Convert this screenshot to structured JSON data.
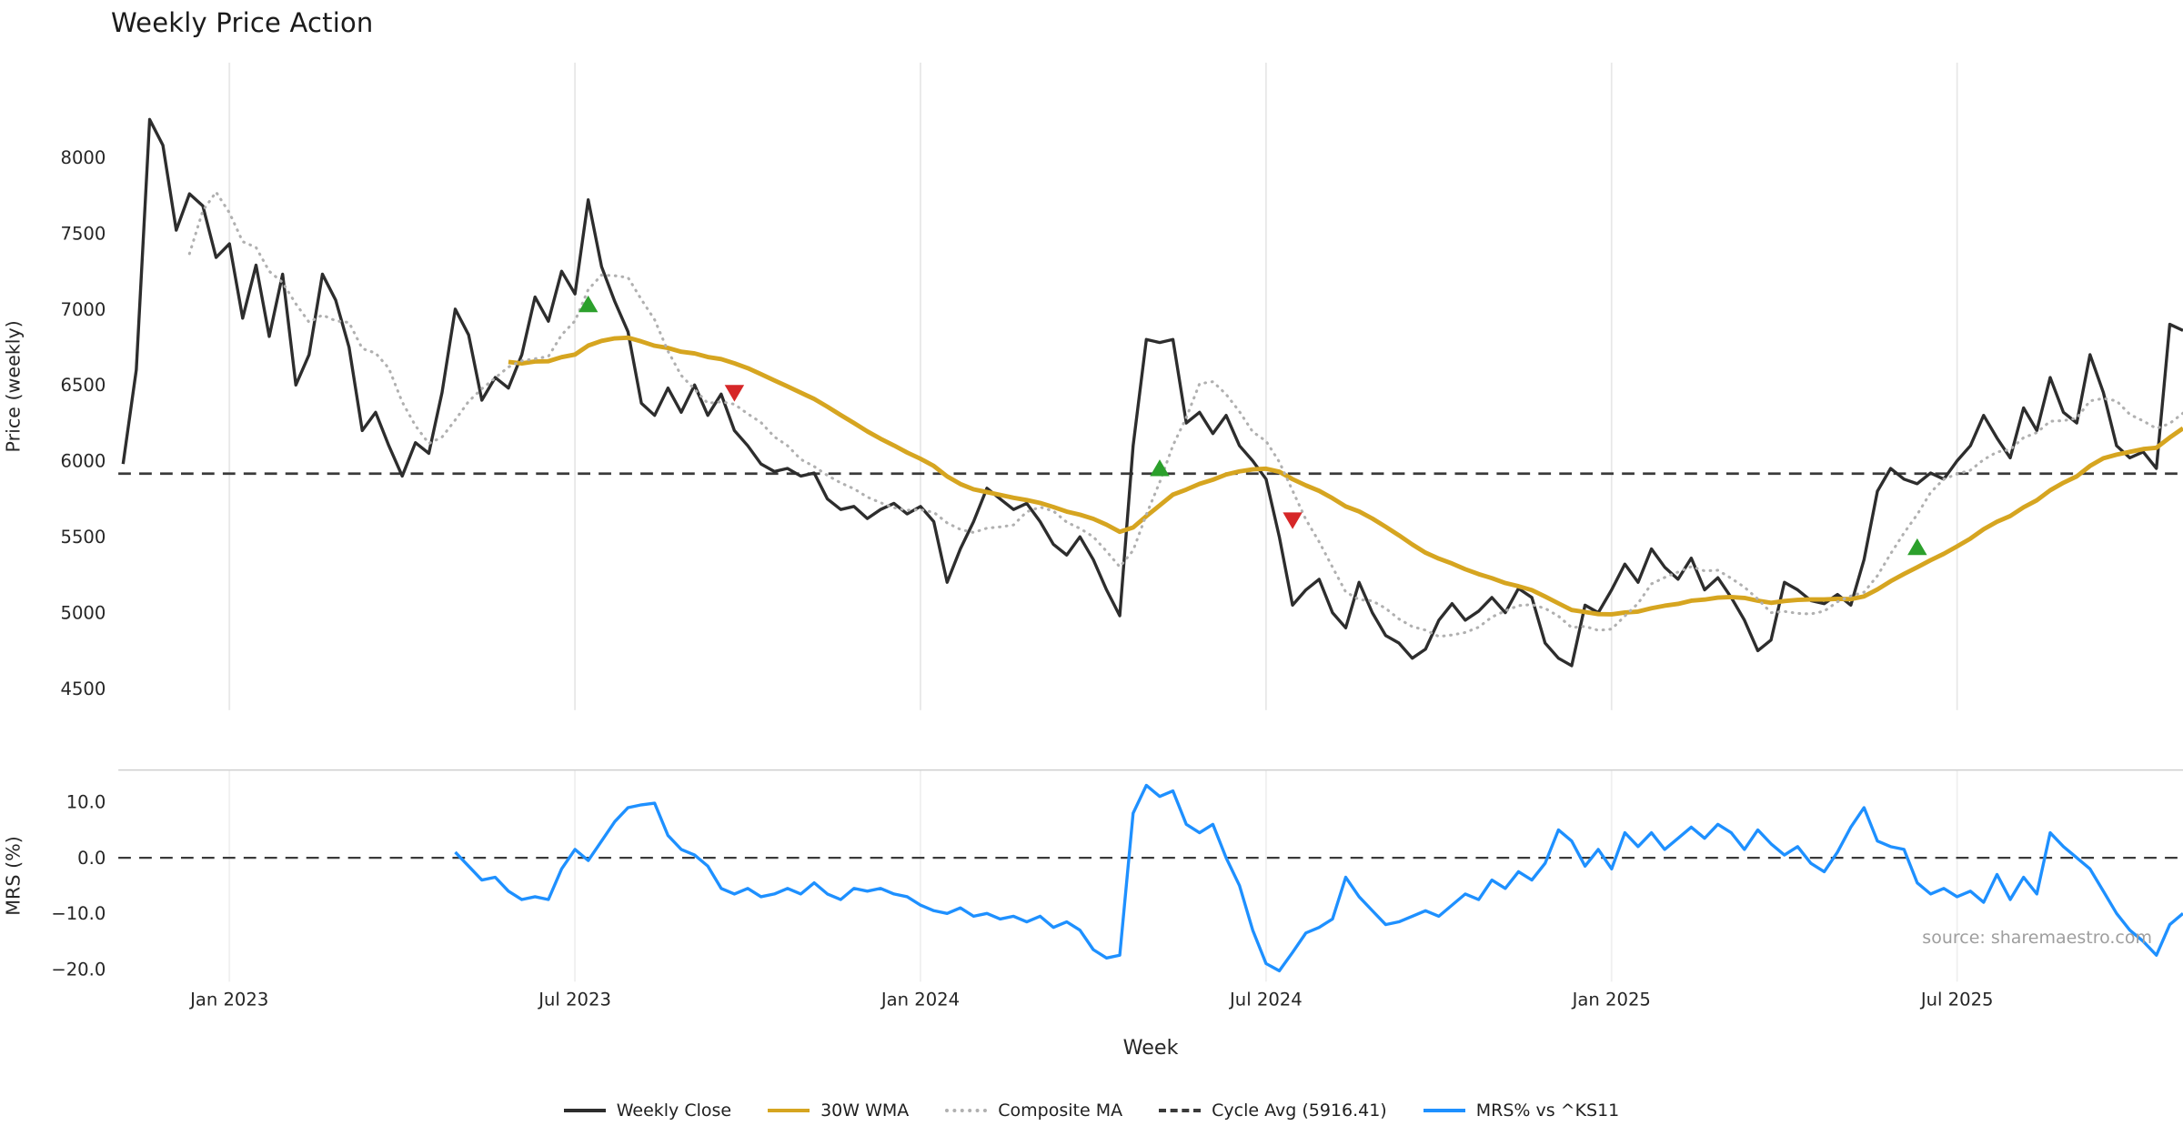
{
  "title": "Weekly Price Action",
  "source": "source: sharemaestro.com",
  "xlabel": "Week",
  "legend": [
    {
      "label": "Weekly Close",
      "color": "#2d2d2d",
      "style": "solid"
    },
    {
      "label": "30W WMA",
      "color": "#d6a520",
      "style": "solid"
    },
    {
      "label": "Composite MA",
      "color": "#b0b0b0",
      "style": "dotted"
    },
    {
      "label": "Cycle Avg (5916.41)",
      "color": "#3a3a3a",
      "style": "dashed"
    },
    {
      "label": "MRS% vs ^KS11",
      "color": "#1e90ff",
      "style": "solid"
    }
  ],
  "chart_data": {
    "type": "line",
    "title": "Weekly Price Action",
    "xlabel": "Week",
    "x_note": "x is weekly; tick marks every 26 weeks",
    "x_ticks": [
      {
        "week": 8,
        "label": "Jan 2023"
      },
      {
        "week": 34,
        "label": "Jul 2023"
      },
      {
        "week": 60,
        "label": "Jan 2024"
      },
      {
        "week": 86,
        "label": "Jul 2024"
      },
      {
        "week": 112,
        "label": "Jan 2025"
      },
      {
        "week": 138,
        "label": "Jul 2025"
      }
    ],
    "panels": [
      {
        "name": "price",
        "ylabel": "Price (weekly)",
        "ylim": [
          4363,
          8623
        ],
        "yticks": [
          4500,
          5000,
          5500,
          6000,
          6500,
          7000,
          7500,
          8000
        ],
        "cycle_avg": 5916.41,
        "series": {
          "close": {
            "name": "Weekly Close",
            "color": "#2d2d2d",
            "start_week": 0,
            "values": [
              5980,
              6600,
              8250,
              8080,
              7520,
              7760,
              7680,
              7340,
              7430,
              6940,
              7290,
              6820,
              7230,
              6500,
              6700,
              7230,
              7060,
              6750,
              6200,
              6320,
              6100,
              5900,
              6120,
              6050,
              6450,
              7000,
              6830,
              6400,
              6550,
              6480,
              6700,
              7080,
              6920,
              7250,
              7100,
              7720,
              7280,
              7050,
              6850,
              6380,
              6300,
              6480,
              6320,
              6500,
              6300,
              6440,
              6200,
              6100,
              5980,
              5930,
              5950,
              5900,
              5920,
              5750,
              5680,
              5700,
              5620,
              5680,
              5720,
              5650,
              5700,
              5600,
              5200,
              5420,
              5600,
              5820,
              5750,
              5680,
              5720,
              5600,
              5450,
              5380,
              5500,
              5350,
              5150,
              4980,
              6100,
              6800,
              6780,
              6800,
              6250,
              6320,
              6180,
              6300,
              6100,
              6000,
              5880,
              5500,
              5050,
              5150,
              5220,
              5000,
              4900,
              5200,
              5000,
              4850,
              4800,
              4700,
              4760,
              4950,
              5060,
              4950,
              5010,
              5100,
              5000,
              5160,
              5100,
              4800,
              4700,
              4650,
              5050,
              5000,
              5150,
              5320,
              5200,
              5420,
              5300,
              5220,
              5360,
              5150,
              5230,
              5100,
              4950,
              4750,
              4820,
              5200,
              5150,
              5080,
              5060,
              5120,
              5050,
              5350,
              5800,
              5950,
              5880,
              5850,
              5920,
              5880,
              6000,
              6100,
              6300,
              6150,
              6020,
              6350,
              6200,
              6550,
              6320,
              6250,
              6700,
              6450,
              6100,
              6020,
              6060,
              5950,
              6900,
              6860
            ]
          },
          "wma": {
            "name": "30W WMA",
            "color": "#d6a520",
            "window": 30,
            "weighting": "linear",
            "derived_from": "close"
          },
          "composite": {
            "name": "Composite MA",
            "color": "#b0b0b0",
            "window": 6,
            "derived_from": "close"
          }
        },
        "markers": {
          "buy_color": "#2ca02c",
          "sell_color": "#d62728",
          "buy": [
            {
              "week": 35,
              "price": 7030
            },
            {
              "week": 78,
              "price": 5950
            },
            {
              "week": 135,
              "price": 5430
            }
          ],
          "sell": [
            {
              "week": 46,
              "price": 6450
            },
            {
              "week": 88,
              "price": 5610
            }
          ]
        }
      },
      {
        "name": "mrs",
        "ylabel": "MRS (%)",
        "ylim": [
          -22.5,
          15.5
        ],
        "yticks": [
          {
            "v": 10,
            "label": "10.0"
          },
          {
            "v": 0,
            "label": "0.0"
          },
          {
            "v": -10,
            "label": "−10.0"
          },
          {
            "v": -20,
            "label": "−20.0"
          }
        ],
        "zero_line": true,
        "series": {
          "mrs": {
            "name": "MRS% vs ^KS11",
            "color": "#1e90ff",
            "start_week": 25,
            "values": [
              1,
              -1.5,
              -4,
              -3.5,
              -6,
              -7.5,
              -7,
              -7.5,
              -2,
              1.5,
              -0.5,
              3,
              6.5,
              9,
              9.5,
              9.8,
              4,
              1.5,
              0.5,
              -1.5,
              -5.5,
              -6.5,
              -5.5,
              -7,
              -6.5,
              -5.5,
              -6.5,
              -4.5,
              -6.5,
              -7.5,
              -5.5,
              -6,
              -5.5,
              -6.5,
              -7,
              -8.5,
              -9.5,
              -10,
              -9,
              -10.5,
              -10,
              -11,
              -10.5,
              -11.5,
              -10.5,
              -12.5,
              -11.5,
              -13,
              -16.5,
              -18,
              -17.5,
              8,
              13,
              11,
              12,
              6,
              4.5,
              6,
              0,
              -5,
              -13,
              -19,
              -20.3,
              -17,
              -13.5,
              -12.5,
              -11,
              -3.5,
              -7,
              -9.5,
              -12,
              -11.5,
              -10.5,
              -9.5,
              -10.5,
              -8.5,
              -6.5,
              -7.5,
              -4,
              -5.5,
              -2.5,
              -4,
              -1,
              5,
              3,
              -1.5,
              1.5,
              -2,
              4.5,
              2,
              4.5,
              1.5,
              3.5,
              5.5,
              3.5,
              6,
              4.5,
              1.5,
              5,
              2.5,
              0.5,
              2,
              -1,
              -2.5,
              1,
              5.5,
              9,
              3,
              2,
              1.5,
              -4.5,
              -6.5,
              -5.5,
              -7,
              -6,
              -8,
              -3,
              -7.5,
              -3.5,
              -6.5,
              4.5,
              2,
              0,
              -2,
              -6,
              -10,
              -13,
              -15,
              -17.5,
              -12,
              -10
            ]
          }
        }
      }
    ]
  }
}
